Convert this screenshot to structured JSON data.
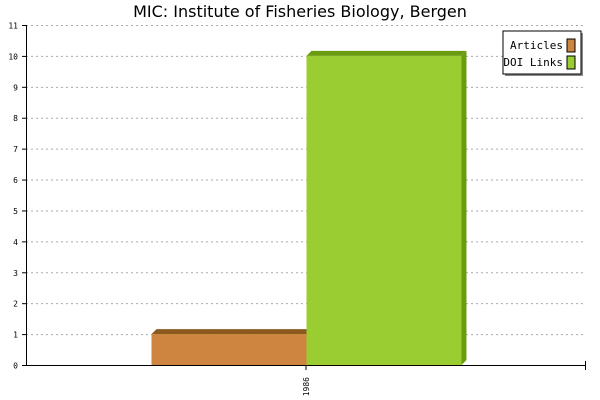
{
  "chart_data": {
    "type": "bar",
    "title": "MIC: Institute of Fisheries Biology, Bergen",
    "categories": [
      "1986"
    ],
    "series": [
      {
        "name": "Articles",
        "values": [
          1
        ],
        "color": "#cd853f",
        "top_color": "#8b5a1e",
        "side_color": "#8b5a1e"
      },
      {
        "name": "DOI Links",
        "values": [
          10
        ],
        "color": "#9acd32",
        "top_color": "#6b9c10",
        "side_color": "#6b9c10"
      }
    ],
    "ylim": [
      0,
      11
    ],
    "yticks": [
      0,
      1,
      2,
      3,
      4,
      5,
      6,
      7,
      8,
      9,
      10,
      11
    ],
    "grid": true,
    "legend_position": "top-right"
  }
}
